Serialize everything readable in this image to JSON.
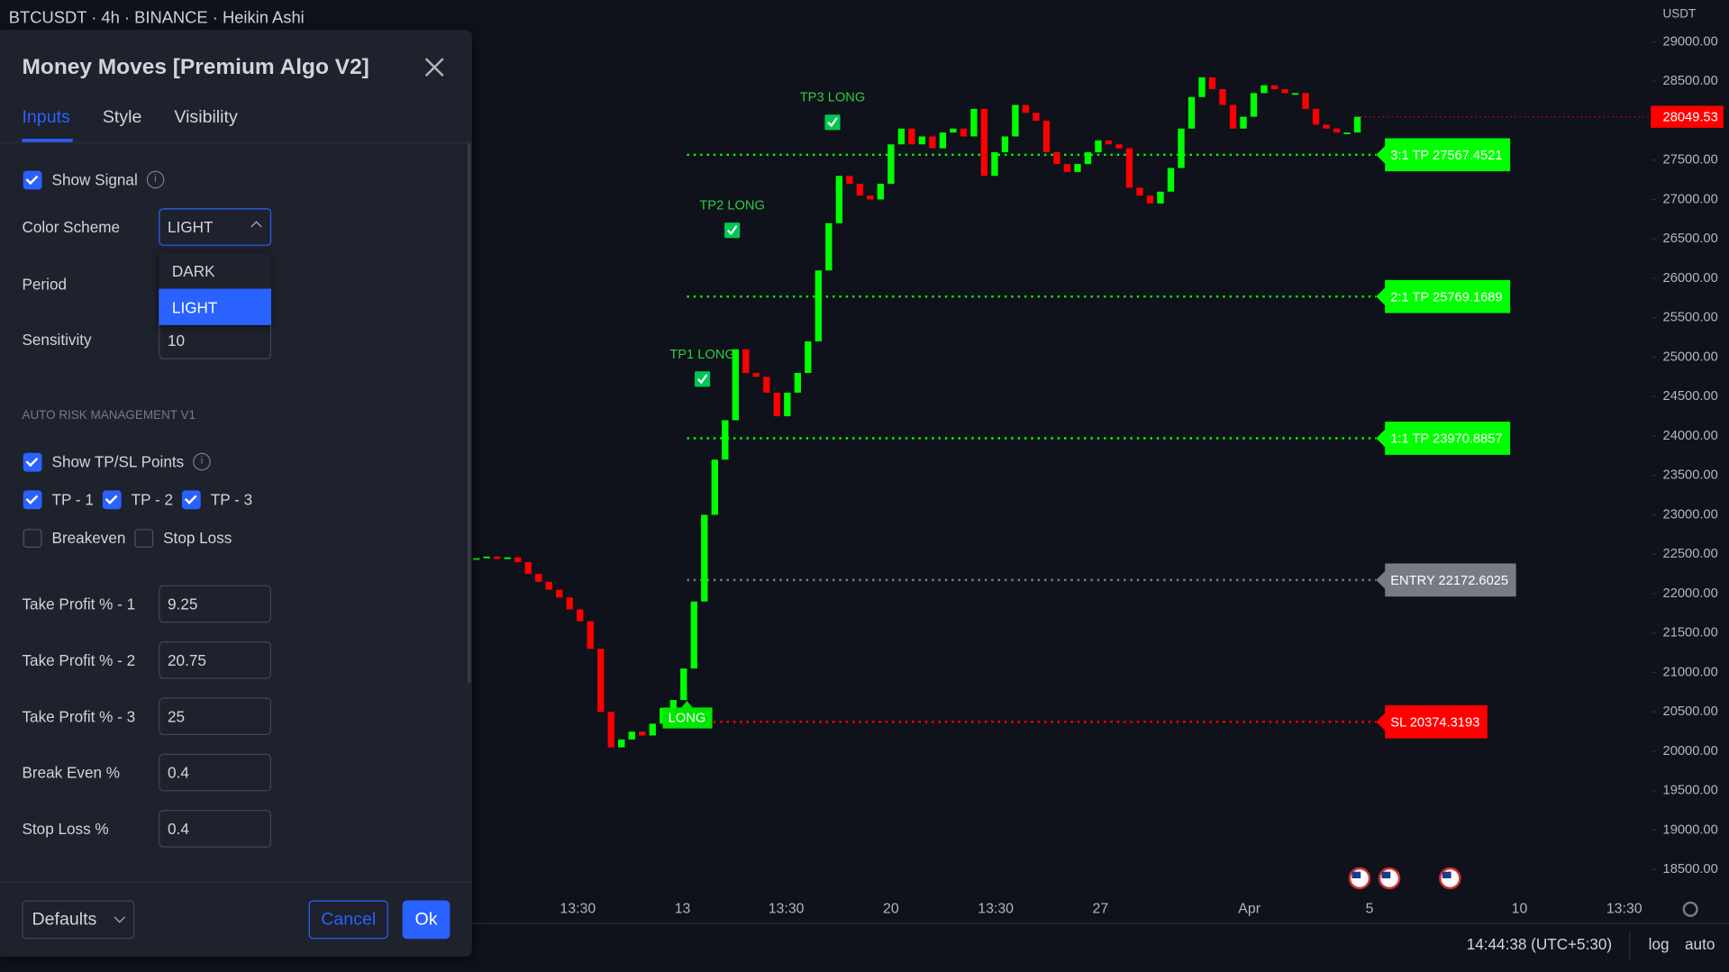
{
  "header": {
    "symbol": "BTCUSDT · 4h · BINANCE · Heikin Ashi"
  },
  "dialog": {
    "title": "Money Moves [Premium Algo V2]",
    "tabs": [
      "Inputs",
      "Style",
      "Visibility"
    ],
    "show_signal": "Show Signal",
    "color_scheme": {
      "label": "Color Scheme",
      "value": "LIGHT",
      "options": [
        "DARK",
        "LIGHT"
      ]
    },
    "period": "Period",
    "sensitivity": {
      "label": "Sensitivity",
      "value": "10"
    },
    "section": "AUTO RISK MANAGEMENT V1",
    "show_tpsl": "Show TP/SL Points",
    "tp_checks": [
      "TP - 1",
      "TP - 2",
      "TP - 3"
    ],
    "other_checks": [
      "Breakeven",
      "Stop Loss"
    ],
    "fields": [
      {
        "label": "Take Profit % - 1",
        "value": "9.25"
      },
      {
        "label": "Take Profit % - 2",
        "value": "20.75"
      },
      {
        "label": "Take Profit % - 3",
        "value": "25"
      },
      {
        "label": "Break Even %",
        "value": "0.4"
      },
      {
        "label": "Stop Loss %",
        "value": "0.4"
      }
    ],
    "buttons": {
      "defaults": "Defaults",
      "cancel": "Cancel",
      "ok": "Ok"
    }
  },
  "chart": {
    "currency": "USDT",
    "ylim": [
      18500,
      29000
    ],
    "yticks": [
      {
        "value": 18500,
        "label": "18500.00"
      },
      {
        "value": 19000,
        "label": "19000.00"
      },
      {
        "value": 19500,
        "label": "19500.00"
      },
      {
        "value": 20000,
        "label": "20000.00"
      },
      {
        "value": 20500,
        "label": "20500.00"
      },
      {
        "value": 21000,
        "label": "21000.00"
      },
      {
        "value": 21500,
        "label": "21500.00"
      },
      {
        "value": 22000,
        "label": "22000.00"
      },
      {
        "value": 22500,
        "label": "22500.00"
      },
      {
        "value": 23000,
        "label": "23000.00"
      },
      {
        "value": 23500,
        "label": "23500.00"
      },
      {
        "value": 24000,
        "label": "24000.00"
      },
      {
        "value": 24500,
        "label": "24500.00"
      },
      {
        "value": 25000,
        "label": "25000.00"
      },
      {
        "value": 25500,
        "label": "25500.00"
      },
      {
        "value": 26000,
        "label": "26000.00"
      },
      {
        "value": 26500,
        "label": "26500.00"
      },
      {
        "value": 27000,
        "label": "27000.00"
      },
      {
        "value": 27500,
        "label": "27500.00"
      },
      {
        "value": 28000,
        "label": "28000.00"
      },
      {
        "value": 28500,
        "label": "28500.00"
      },
      {
        "value": 29000,
        "label": "29000.00"
      }
    ],
    "last_price": {
      "value": 28049.53,
      "label": "28049.53"
    },
    "time_labels": [
      "13:30",
      "13",
      "13:30",
      "20",
      "13:30",
      "27",
      "Apr",
      "5",
      "10",
      "13:30"
    ],
    "up_color": "#00ff00",
    "down_color": "#ff0000",
    "closes": [
      22450,
      22470,
      22440,
      22460,
      22400,
      22250,
      22150,
      22050,
      21950,
      21800,
      21650,
      21300,
      20500,
      20050,
      20150,
      20250,
      20200,
      20350,
      20550,
      20650,
      21050,
      21900,
      23000,
      23700,
      24200,
      25100,
      24800,
      24750,
      24550,
      24250,
      24550,
      24800,
      25200,
      26100,
      26700,
      27300,
      27200,
      27050,
      27000,
      27200,
      27700,
      27900,
      27700,
      27800,
      27650,
      27850,
      27900,
      27800,
      28150,
      27300,
      27600,
      27800,
      28200,
      28100,
      28000,
      27600,
      27450,
      27350,
      27450,
      27600,
      27750,
      27700,
      27650,
      27150,
      27050,
      26950,
      27100,
      27400,
      27900,
      28300,
      28550,
      28400,
      28200,
      27900,
      28050,
      28350,
      28450,
      28400,
      28350,
      28350,
      28150,
      27950,
      27900,
      27850,
      27850,
      28050
    ],
    "levels": [
      {
        "label": "3:1 TP 27567.4521",
        "value": 27567.4521,
        "color": "#00ff00"
      },
      {
        "label": "2:1 TP 25769.1689",
        "value": 25769.1689,
        "color": "#00ff00"
      },
      {
        "label": "1:1 TP 23970.8857",
        "value": 23970.8857,
        "color": "#00ff00"
      },
      {
        "label": "ENTRY 22172.6025",
        "value": 22172.6025,
        "color": "#787b86"
      },
      {
        "label": "SL 20374.3193",
        "value": 20374.3193,
        "color": "#ff0000"
      }
    ],
    "signals": [
      "LONG",
      "TP1 LONG",
      "TP2 LONG",
      "TP3 LONG"
    ]
  },
  "footer": {
    "clock": "14:44:38 (UTC+5:30)",
    "scale_modes": [
      "log",
      "auto"
    ]
  }
}
